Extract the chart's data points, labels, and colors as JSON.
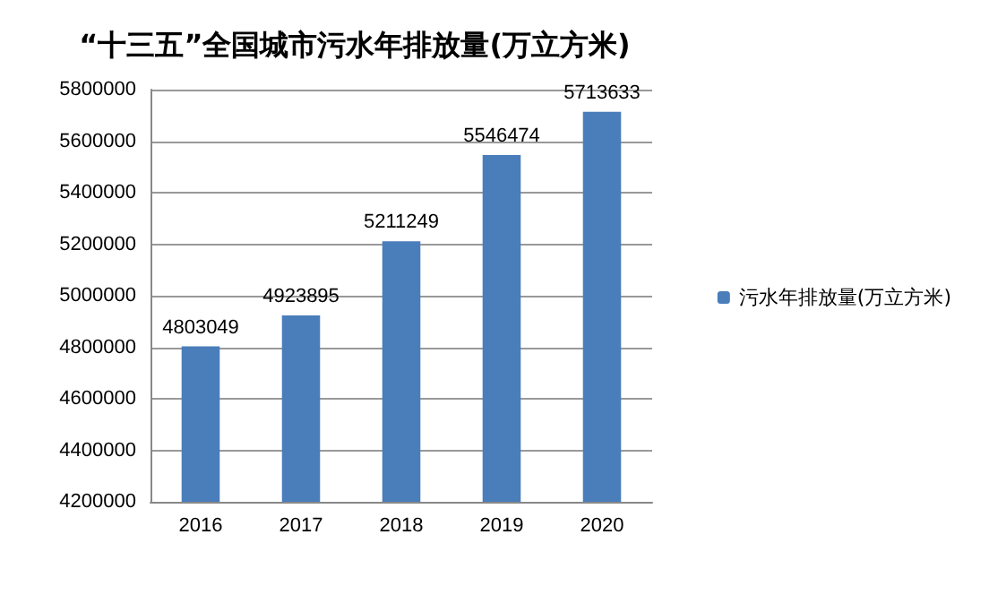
{
  "chart_data": {
    "type": "bar",
    "title": "“十三五”全国城市污水年排放量(万立方米)",
    "categories": [
      "2016",
      "2017",
      "2018",
      "2019",
      "2020"
    ],
    "series": [
      {
        "name": "污水年排放量(万立方米)",
        "color": "#4a7ebb",
        "values": [
          4803049,
          4923895,
          5211249,
          5546474,
          5713633
        ]
      }
    ],
    "ylim": [
      4200000,
      5800000
    ],
    "yticks": [
      4200000,
      4400000,
      4600000,
      4800000,
      5000000,
      5200000,
      5400000,
      5600000,
      5800000
    ],
    "grid": "y",
    "legend": "right",
    "data_labels": true
  }
}
